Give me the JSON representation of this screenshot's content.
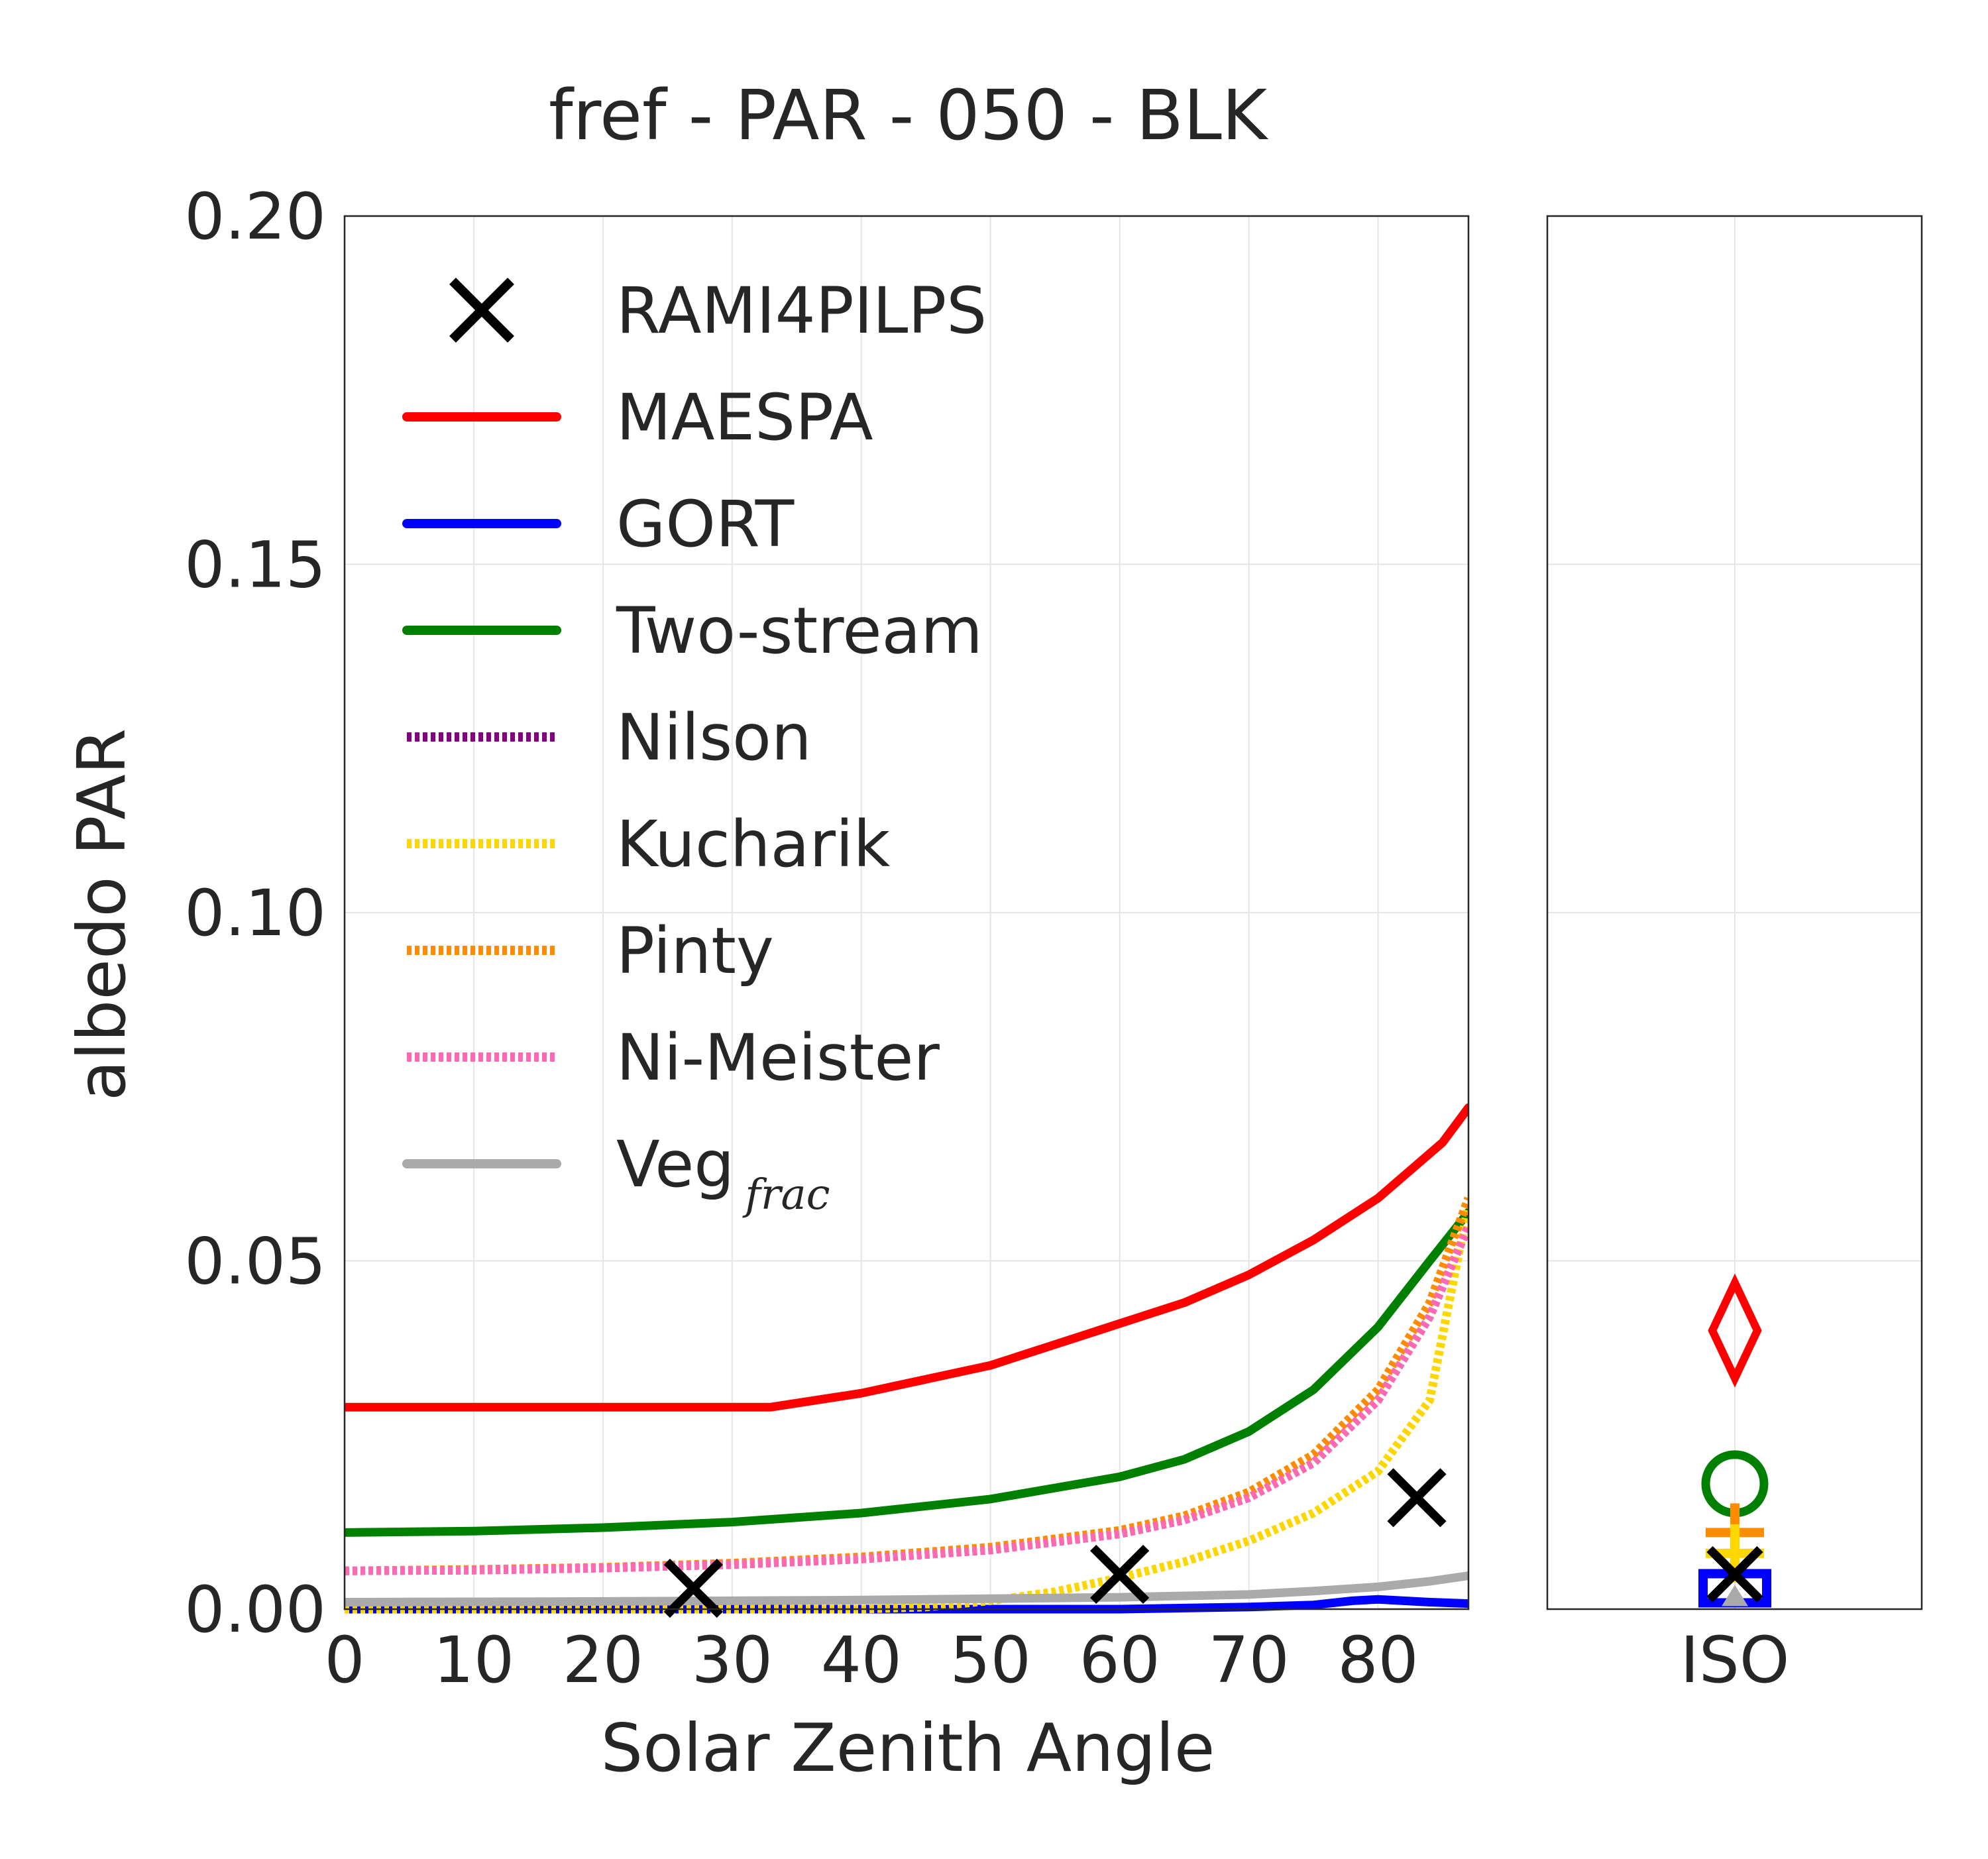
{
  "chart_data": [
    {
      "type": "line",
      "title": "fref - PAR - 050 - BLK",
      "xlabel": "Solar Zenith Angle",
      "ylabel": "albedo PAR",
      "xlim": [
        0,
        87
      ],
      "ylim": [
        0,
        0.2
      ],
      "xticks": [
        "0",
        "10",
        "20",
        "30",
        "40",
        "50",
        "60",
        "70",
        "80"
      ],
      "yticks": [
        "0.00",
        "0.05",
        "0.10",
        "0.15",
        "0.20"
      ],
      "grid": true,
      "legend_position": "upper-left",
      "series": [
        {
          "name": "RAMI4PILPS",
          "style": "marker-x",
          "color": "#000000",
          "x": [
            27,
            60,
            83
          ],
          "y": [
            0.003,
            0.005,
            0.016
          ]
        },
        {
          "name": "MAESPA",
          "style": "solid",
          "color": "#ff0000",
          "x": [
            0,
            10,
            20,
            30,
            33,
            40,
            50,
            60,
            65,
            70,
            75,
            80,
            85,
            87
          ],
          "y": [
            0.029,
            0.029,
            0.029,
            0.029,
            0.029,
            0.031,
            0.035,
            0.041,
            0.044,
            0.048,
            0.053,
            0.059,
            0.067,
            0.072
          ]
        },
        {
          "name": "GORT",
          "style": "solid",
          "color": "#0000ff",
          "x": [
            0,
            20,
            40,
            60,
            70,
            75,
            78,
            80,
            84,
            87
          ],
          "y": [
            0.0,
            0.0,
            0.0,
            0.0,
            0.0003,
            0.0006,
            0.0012,
            0.0014,
            0.001,
            0.0008
          ]
        },
        {
          "name": "Two-stream",
          "style": "solid",
          "color": "#008000",
          "x": [
            0,
            10,
            20,
            30,
            40,
            50,
            60,
            65,
            70,
            75,
            80,
            84,
            87
          ],
          "y": [
            0.011,
            0.0112,
            0.0117,
            0.0125,
            0.0138,
            0.0158,
            0.019,
            0.0215,
            0.0255,
            0.0315,
            0.0405,
            0.05,
            0.057
          ]
        },
        {
          "name": "Nilson",
          "style": "dotted",
          "color": "#800080",
          "x": [
            0,
            10,
            20,
            30,
            40,
            50,
            60,
            65,
            70,
            75,
            80,
            84,
            87
          ],
          "y": [
            0.0055,
            0.0056,
            0.0059,
            0.0064,
            0.0072,
            0.0085,
            0.0108,
            0.0128,
            0.016,
            0.021,
            0.03,
            0.042,
            0.055
          ]
        },
        {
          "name": "Kucharik",
          "style": "dotted",
          "color": "#ffd700",
          "x": [
            0,
            30,
            40,
            45,
            50,
            55,
            60,
            65,
            70,
            75,
            80,
            84,
            87
          ],
          "y": [
            0.0,
            0.0,
            0.0,
            0.0003,
            0.0012,
            0.0025,
            0.0045,
            0.0068,
            0.0098,
            0.0138,
            0.0198,
            0.03,
            0.058
          ]
        },
        {
          "name": "Pinty",
          "style": "dotted",
          "color": "#ff8c00",
          "x": [
            0,
            10,
            20,
            30,
            40,
            50,
            60,
            65,
            70,
            75,
            80,
            84,
            87
          ],
          "y": [
            0.0055,
            0.0057,
            0.006,
            0.0066,
            0.0075,
            0.0089,
            0.0113,
            0.0134,
            0.0168,
            0.0222,
            0.0315,
            0.044,
            0.059
          ]
        },
        {
          "name": "Ni-Meister",
          "style": "dotted",
          "color": "#ff69b4",
          "x": [
            0,
            10,
            20,
            30,
            40,
            50,
            60,
            65,
            70,
            75,
            80,
            84,
            87
          ],
          "y": [
            0.0055,
            0.0056,
            0.0059,
            0.0064,
            0.0072,
            0.0085,
            0.0108,
            0.0128,
            0.016,
            0.021,
            0.03,
            0.042,
            0.055
          ]
        },
        {
          "name": "Veg",
          "name_subscript": "frac",
          "style": "solid",
          "color": "#aaaaaa",
          "x": [
            0,
            20,
            40,
            60,
            70,
            75,
            80,
            84,
            87
          ],
          "y": [
            0.001,
            0.0011,
            0.0013,
            0.0017,
            0.0021,
            0.0026,
            0.0032,
            0.004,
            0.0048
          ]
        }
      ]
    },
    {
      "type": "scatter",
      "categories": [
        "ISO"
      ],
      "ylim": [
        0,
        0.2
      ],
      "grid": true,
      "points": [
        {
          "series": "MAESPA",
          "marker": "diamond",
          "color": "#ff0000",
          "y": 0.04
        },
        {
          "series": "Two-stream",
          "marker": "circle",
          "color": "#008000",
          "y": 0.018
        },
        {
          "series": "Pinty",
          "marker": "plus",
          "color": "#ff8c00",
          "y": 0.011
        },
        {
          "series": "Kucharik",
          "marker": "plus",
          "color": "#ffd700",
          "y": 0.008
        },
        {
          "series": "GORT",
          "marker": "square",
          "color": "#0000ff",
          "y": 0.003
        },
        {
          "series": "Veg",
          "marker": "triangle",
          "color": "#aaaaaa",
          "y": 0.001
        },
        {
          "series": "RAMI4PILPS",
          "marker": "x",
          "color": "#000000",
          "y": 0.005
        }
      ]
    }
  ]
}
